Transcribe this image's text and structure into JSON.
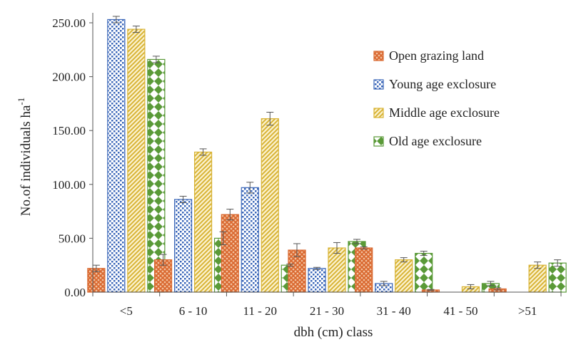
{
  "chart_data": {
    "type": "bar",
    "categories": [
      "<5",
      "6 - 10",
      "11 - 20",
      "21 - 30",
      "31 - 40",
      "41 - 50",
      ">51"
    ],
    "series": [
      {
        "name": "Open grazing land",
        "values": [
          22,
          30,
          72,
          39,
          41,
          2,
          3
        ],
        "errors": [
          3,
          5,
          5,
          6,
          1,
          0.5,
          1
        ],
        "color": "#d9672e",
        "pattern": "crosshatch"
      },
      {
        "name": "Young age exclosure",
        "values": [
          253,
          86,
          97,
          22,
          8,
          0,
          0
        ],
        "errors": [
          3,
          3,
          5,
          1,
          2,
          0,
          0
        ],
        "color": "#3a66b8",
        "pattern": "dots"
      },
      {
        "name": "Middle age exclosure",
        "values": [
          244,
          130,
          161,
          41,
          30,
          5,
          25
        ],
        "errors": [
          3,
          3,
          6,
          5,
          2,
          2,
          3
        ],
        "color": "#d8b335",
        "pattern": "diagonal"
      },
      {
        "name": "Old age exclosure",
        "values": [
          216,
          50,
          25,
          47,
          36,
          8,
          27
        ],
        "errors": [
          3,
          6,
          1,
          2,
          2,
          2,
          3
        ],
        "color": "#5a9a38",
        "pattern": "diamonds"
      }
    ],
    "ylim": [
      0,
      250
    ],
    "yticks": [
      "0.00",
      "50.00",
      "100.00",
      "150.00",
      "200.00",
      "250.00"
    ],
    "ylabel_main": "No.of individuals ha",
    "ylabel_sup": "-1",
    "xlabel": "dbh (cm) class",
    "legend_position": "right",
    "grid": false
  }
}
